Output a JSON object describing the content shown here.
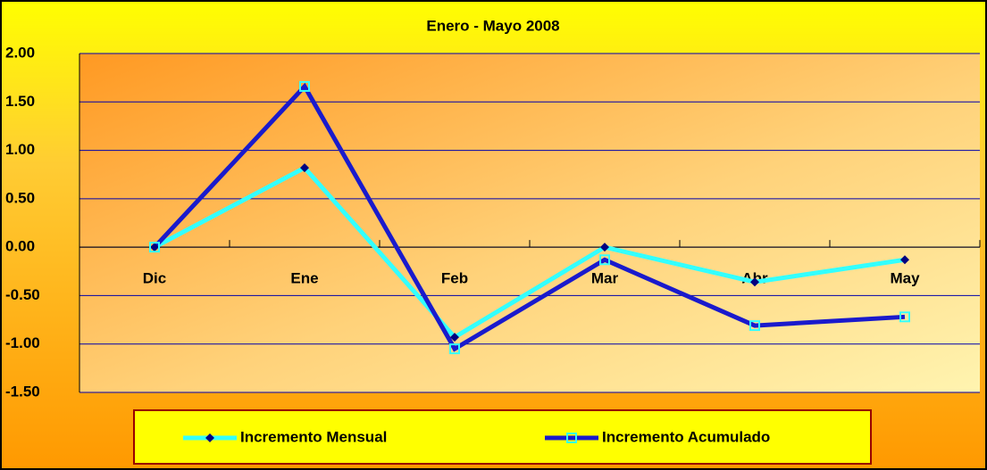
{
  "chart_data": {
    "type": "line",
    "title": "Enero - Mayo 2008",
    "categories": [
      "Dic",
      "Ene",
      "Feb",
      "Mar",
      "Abr",
      "May"
    ],
    "series": [
      {
        "name": "Incremento Mensual",
        "color": "#33ffff",
        "marker_color": "#000080",
        "values": [
          0,
          0.82,
          -0.93,
          0.0,
          -0.36,
          -0.13
        ]
      },
      {
        "name": "Incremento Acumulado",
        "color": "#1a1acc",
        "marker_color": "#33ffff",
        "values": [
          0,
          1.66,
          -1.05,
          -0.13,
          -0.81,
          -0.72
        ]
      }
    ],
    "ylim": [
      -1.5,
      2.0
    ],
    "yticks": [
      {
        "value": -1.5,
        "label": "-1.50"
      },
      {
        "value": -1.0,
        "label": "-1.00"
      },
      {
        "value": -0.5,
        "label": "-0.50"
      },
      {
        "value": 0,
        "label": "0.00"
      },
      {
        "value": 0.5,
        "label": "0.50"
      },
      {
        "value": 1.0,
        "label": "1.00"
      },
      {
        "value": 1.5,
        "label": "1.50"
      },
      {
        "value": 2.0,
        "label": "2.00"
      }
    ],
    "grid": true
  }
}
